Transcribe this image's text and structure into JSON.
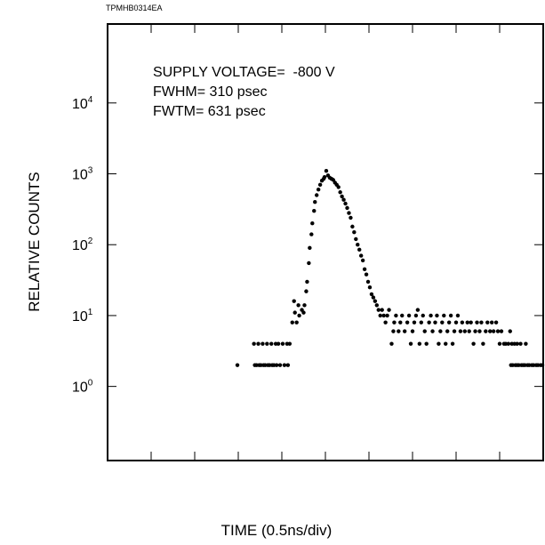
{
  "document_id": "TPMHB0314EA",
  "chart_data": {
    "type": "scatter",
    "title": "",
    "xlabel": "TIME (0.5ns/div)",
    "ylabel": "RELATIVE COUNTS",
    "x_unit": "ns",
    "xlim": [
      0,
      5.0
    ],
    "x_divisions": 10,
    "yscale": "log",
    "ylim": [
      0.09,
      130000
    ],
    "yticks": [
      {
        "base": "10",
        "exp": "0",
        "value": 1
      },
      {
        "base": "10",
        "exp": "1",
        "value": 10
      },
      {
        "base": "10",
        "exp": "2",
        "value": 100
      },
      {
        "base": "10",
        "exp": "3",
        "value": 1000
      },
      {
        "base": "10",
        "exp": "4",
        "value": 10000
      }
    ],
    "grid": false,
    "annotations": [
      "SUPPLY VOLTAGE=  -800 V",
      "FWHM= 310 psec",
      "FWTM= 631 psec"
    ],
    "points": [
      [
        1.49,
        2
      ],
      [
        1.68,
        4
      ],
      [
        1.69,
        2
      ],
      [
        1.71,
        2
      ],
      [
        1.73,
        4
      ],
      [
        1.74,
        2
      ],
      [
        1.76,
        2
      ],
      [
        1.78,
        4
      ],
      [
        1.79,
        2
      ],
      [
        1.81,
        2
      ],
      [
        1.83,
        4
      ],
      [
        1.84,
        2
      ],
      [
        1.86,
        2
      ],
      [
        1.88,
        4
      ],
      [
        1.89,
        2
      ],
      [
        1.91,
        2
      ],
      [
        1.93,
        4
      ],
      [
        1.94,
        2
      ],
      [
        1.96,
        4
      ],
      [
        1.98,
        2
      ],
      [
        2.01,
        4
      ],
      [
        2.03,
        2
      ],
      [
        2.06,
        4
      ],
      [
        2.07,
        2
      ],
      [
        2.09,
        4
      ],
      [
        2.12,
        8
      ],
      [
        2.14,
        16
      ],
      [
        2.15,
        11
      ],
      [
        2.17,
        8
      ],
      [
        2.19,
        14
      ],
      [
        2.2,
        10
      ],
      [
        2.23,
        12
      ],
      [
        2.25,
        11
      ],
      [
        2.26,
        14
      ],
      [
        2.28,
        22
      ],
      [
        2.29,
        30
      ],
      [
        2.31,
        55
      ],
      [
        2.32,
        90
      ],
      [
        2.34,
        140
      ],
      [
        2.35,
        200
      ],
      [
        2.37,
        300
      ],
      [
        2.38,
        400
      ],
      [
        2.4,
        500
      ],
      [
        2.42,
        600
      ],
      [
        2.44,
        700
      ],
      [
        2.46,
        800
      ],
      [
        2.48,
        850
      ],
      [
        2.49,
        900
      ],
      [
        2.51,
        1100
      ],
      [
        2.53,
        950
      ],
      [
        2.55,
        880
      ],
      [
        2.57,
        850
      ],
      [
        2.59,
        820
      ],
      [
        2.61,
        750
      ],
      [
        2.63,
        700
      ],
      [
        2.65,
        650
      ],
      [
        2.67,
        550
      ],
      [
        2.69,
        480
      ],
      [
        2.71,
        430
      ],
      [
        2.73,
        380
      ],
      [
        2.75,
        330
      ],
      [
        2.77,
        280
      ],
      [
        2.79,
        240
      ],
      [
        2.81,
        180
      ],
      [
        2.83,
        150
      ],
      [
        2.85,
        120
      ],
      [
        2.87,
        100
      ],
      [
        2.89,
        85
      ],
      [
        2.91,
        70
      ],
      [
        2.93,
        60
      ],
      [
        2.95,
        45
      ],
      [
        2.97,
        38
      ],
      [
        2.99,
        30
      ],
      [
        3.01,
        25
      ],
      [
        3.03,
        20
      ],
      [
        3.05,
        18
      ],
      [
        3.07,
        16
      ],
      [
        3.09,
        14
      ],
      [
        3.11,
        12
      ],
      [
        3.13,
        10
      ],
      [
        3.15,
        12
      ],
      [
        3.17,
        10
      ],
      [
        3.19,
        8
      ],
      [
        3.21,
        10
      ],
      [
        3.23,
        12
      ],
      [
        3.26,
        4
      ],
      [
        3.28,
        6
      ],
      [
        3.29,
        8
      ],
      [
        3.31,
        10
      ],
      [
        3.34,
        6
      ],
      [
        3.36,
        8
      ],
      [
        3.38,
        10
      ],
      [
        3.41,
        6
      ],
      [
        3.44,
        8
      ],
      [
        3.46,
        10
      ],
      [
        3.48,
        4
      ],
      [
        3.5,
        6
      ],
      [
        3.52,
        8
      ],
      [
        3.54,
        10
      ],
      [
        3.56,
        12
      ],
      [
        3.58,
        4
      ],
      [
        3.6,
        8
      ],
      [
        3.62,
        10
      ],
      [
        3.64,
        6
      ],
      [
        3.66,
        4
      ],
      [
        3.69,
        8
      ],
      [
        3.71,
        10
      ],
      [
        3.73,
        6
      ],
      [
        3.76,
        8
      ],
      [
        3.78,
        10
      ],
      [
        3.8,
        4
      ],
      [
        3.82,
        6
      ],
      [
        3.84,
        8
      ],
      [
        3.86,
        10
      ],
      [
        3.88,
        4
      ],
      [
        3.9,
        6
      ],
      [
        3.92,
        8
      ],
      [
        3.94,
        10
      ],
      [
        3.96,
        4
      ],
      [
        3.98,
        6
      ],
      [
        4.0,
        8
      ],
      [
        4.02,
        10
      ],
      [
        4.05,
        6
      ],
      [
        4.07,
        8
      ],
      [
        4.1,
        6
      ],
      [
        4.13,
        8
      ],
      [
        4.15,
        6
      ],
      [
        4.17,
        8
      ],
      [
        4.2,
        4
      ],
      [
        4.22,
        6
      ],
      [
        4.24,
        8
      ],
      [
        4.27,
        6
      ],
      [
        4.29,
        8
      ],
      [
        4.31,
        4
      ],
      [
        4.34,
        6
      ],
      [
        4.36,
        8
      ],
      [
        4.39,
        6
      ],
      [
        4.41,
        8
      ],
      [
        4.43,
        6
      ],
      [
        4.46,
        8
      ],
      [
        4.48,
        6
      ],
      [
        4.5,
        4
      ],
      [
        4.52,
        6
      ],
      [
        4.55,
        4
      ],
      [
        4.57,
        4
      ],
      [
        4.6,
        4
      ],
      [
        4.62,
        6
      ],
      [
        4.64,
        4
      ],
      [
        4.67,
        4
      ],
      [
        4.7,
        4
      ],
      [
        4.74,
        4
      ],
      [
        4.8,
        4
      ],
      [
        4.63,
        2
      ],
      [
        4.65,
        2
      ],
      [
        4.68,
        2
      ],
      [
        4.7,
        2
      ],
      [
        4.72,
        2
      ],
      [
        4.75,
        2
      ],
      [
        4.77,
        2
      ],
      [
        4.79,
        2
      ],
      [
        4.82,
        2
      ],
      [
        4.84,
        2
      ],
      [
        4.87,
        2
      ],
      [
        4.89,
        2
      ],
      [
        4.92,
        2
      ],
      [
        4.94,
        2
      ],
      [
        4.97,
        2
      ],
      [
        4.99,
        2
      ]
    ]
  }
}
